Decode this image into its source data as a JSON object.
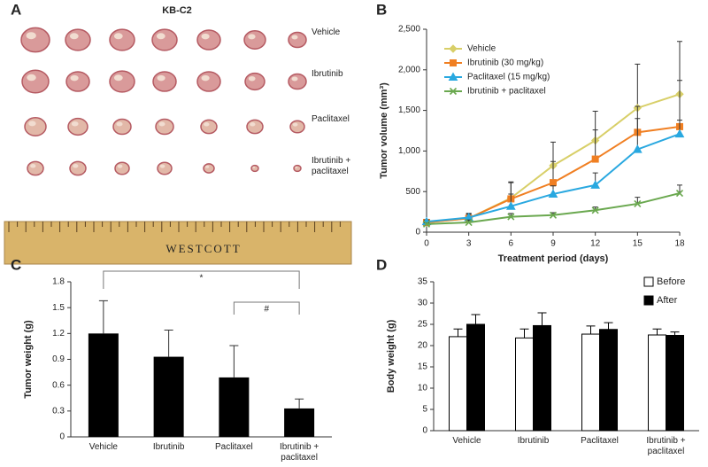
{
  "panel_a": {
    "panel": "A",
    "title": "KB-C2",
    "rows": [
      "Vehicle",
      "Ibrutinib",
      "Paclitaxel",
      "Ibrutinib + paclitaxel"
    ],
    "ruler_brand": "WESTCOTT"
  },
  "chart_data": [
    {
      "type": "line",
      "panel": "B",
      "xlabel": "Treatment period (days)",
      "ylabel": "Tumor volume (mm³)",
      "x": [
        0,
        3,
        6,
        9,
        12,
        15,
        18
      ],
      "xlim": [
        0,
        18
      ],
      "xticks": [
        0,
        3,
        6,
        9,
        12,
        15,
        18
      ],
      "ylim": [
        0,
        2500
      ],
      "yticks": [
        0,
        500,
        {
          "value": 1000,
          "label": "1,000"
        },
        {
          "value": 1500,
          "label": "1,500"
        },
        {
          "value": 2000,
          "label": "2,000"
        },
        {
          "value": 2500,
          "label": "2,500"
        }
      ],
      "legend": "upper left",
      "series": [
        {
          "name": "Vehicle",
          "color": "#d8cf68",
          "marker": "diamond",
          "values": [
            120,
            170,
            420,
            820,
            1130,
            1530,
            1700
          ],
          "errors": [
            20,
            60,
            200,
            290,
            360,
            540,
            650
          ]
        },
        {
          "name": "Ibrutinib (30 mg/kg)",
          "color": "#f07f22",
          "marker": "square",
          "values": [
            120,
            170,
            410,
            610,
            900,
            1230,
            1300
          ],
          "errors": [
            20,
            50,
            200,
            260,
            360,
            320,
            570
          ]
        },
        {
          "name": "Paclitaxel (15 mg/kg)",
          "color": "#29a8e0",
          "marker": "triangle",
          "values": [
            130,
            180,
            320,
            470,
            580,
            1020,
            1210
          ],
          "errors": [
            20,
            50,
            150,
            100,
            150,
            380,
            170
          ]
        },
        {
          "name": "Ibrutinib + paclitaxel",
          "color": "#6aa84f",
          "marker": "x",
          "values": [
            100,
            120,
            190,
            210,
            270,
            350,
            480
          ],
          "errors": [
            15,
            30,
            40,
            30,
            40,
            80,
            100
          ]
        }
      ]
    },
    {
      "type": "bar",
      "panel": "C",
      "ylabel": "Tumor weight (g)",
      "categories": [
        "Vehicle",
        "Ibrutinib",
        "Paclitaxel",
        "Ibrutinib + paclitaxel"
      ],
      "values": [
        1.2,
        0.93,
        0.69,
        0.33
      ],
      "errors": [
        0.38,
        0.31,
        0.37,
        0.11
      ],
      "color": "#000000",
      "ylim": [
        0,
        1.8
      ],
      "yticks": [
        0,
        0.3,
        0.6,
        0.9,
        1.2,
        1.5,
        1.8
      ],
      "annotations": [
        "*",
        "#"
      ]
    },
    {
      "type": "grouped_bar",
      "panel": "D",
      "ylabel": "Body weight (g)",
      "categories": [
        "Vehicle",
        "Ibrutinib",
        "Paclitaxel",
        "Ibrutinib + paclitaxel"
      ],
      "ylim": [
        0,
        35
      ],
      "yticks": [
        0,
        5,
        10,
        15,
        20,
        25,
        30,
        35
      ],
      "legend": "upper right",
      "series": [
        {
          "name": "Before",
          "color": "#ffffff",
          "values": [
            22.1,
            21.8,
            22.7,
            22.5
          ],
          "errors": [
            1.8,
            2.1,
            1.9,
            1.4
          ]
        },
        {
          "name": "After",
          "color": "#000000",
          "values": [
            25,
            24.7,
            23.8,
            22.4
          ],
          "errors": [
            2.3,
            3,
            1.6,
            0.8
          ]
        }
      ]
    }
  ]
}
